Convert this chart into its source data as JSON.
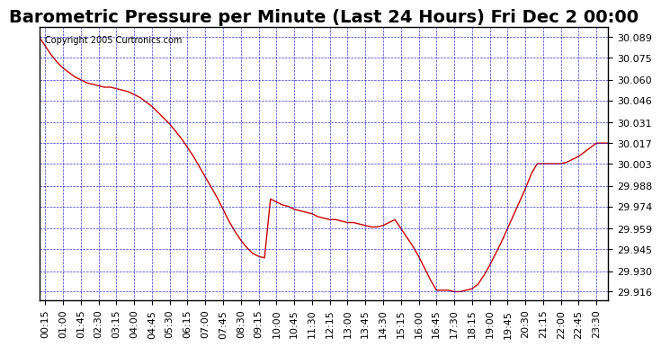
{
  "title": "Barometric Pressure per Minute (Last 24 Hours) Fri Dec 2 00:00",
  "copyright": "Copyright 2005 Curtronics.com",
  "line_color": "#cc0000",
  "background_color": "#ffffff",
  "grid_color": "#0000cc",
  "title_fontsize": 14,
  "ylabel_fontsize": 8,
  "xlabel_fontsize": 8,
  "ylim": [
    29.91,
    30.096
  ],
  "yticks": [
    29.916,
    29.93,
    29.945,
    29.959,
    29.974,
    29.988,
    30.003,
    30.017,
    30.031,
    30.046,
    30.06,
    30.075,
    30.089
  ],
  "ytick_labels": [
    "29.916",
    "29.930",
    "29.945",
    "29.959",
    "29.974",
    "29.988",
    "30.003",
    "30.017",
    "30.031",
    "30.046",
    "30.060",
    "30.075",
    "30.089"
  ],
  "xtick_labels": [
    "00:15",
    "01:00",
    "01:45",
    "02:30",
    "03:15",
    "04:00",
    "04:45",
    "05:30",
    "06:15",
    "07:00",
    "07:45",
    "08:30",
    "09:15",
    "10:00",
    "10:45",
    "11:30",
    "12:15",
    "13:00",
    "13:45",
    "14:30",
    "15:15",
    "16:00",
    "16:45",
    "17:30",
    "18:15",
    "19:00",
    "19:45",
    "20:30",
    "21:15",
    "22:00",
    "22:45",
    "23:30"
  ],
  "data_x": [
    0,
    15,
    30,
    45,
    60,
    75,
    90,
    105,
    120,
    135,
    150,
    165,
    180,
    195,
    210,
    225,
    240,
    255,
    270,
    285,
    300,
    315,
    330,
    345,
    360,
    375,
    390,
    405,
    420,
    435,
    450,
    465,
    480,
    495,
    510,
    525,
    540,
    555,
    570,
    585,
    600,
    615,
    630,
    645,
    660,
    675,
    690,
    705,
    720,
    735,
    750,
    765,
    780,
    795,
    810,
    825,
    840,
    855,
    870,
    885,
    900,
    915,
    930,
    945,
    960,
    975,
    990,
    1005,
    1020,
    1035,
    1050,
    1065,
    1080,
    1095,
    1110,
    1125,
    1140,
    1155,
    1170,
    1185,
    1200,
    1215,
    1230,
    1245,
    1260,
    1275,
    1290,
    1305,
    1320,
    1335,
    1350,
    1365,
    1380,
    1395,
    1410,
    1425,
    1440
  ],
  "data_y": [
    30.089,
    30.083,
    30.077,
    30.072,
    30.068,
    30.065,
    30.062,
    30.06,
    30.058,
    30.057,
    30.056,
    30.055,
    30.055,
    30.054,
    30.053,
    30.052,
    30.05,
    30.048,
    30.045,
    30.042,
    30.038,
    30.034,
    30.03,
    30.025,
    30.02,
    30.014,
    30.008,
    30.001,
    29.994,
    29.987,
    29.98,
    29.972,
    29.964,
    29.957,
    29.951,
    29.946,
    29.942,
    29.94,
    29.939,
    29.979,
    29.977,
    29.975,
    29.974,
    29.972,
    29.971,
    29.97,
    29.969,
    29.967,
    29.966,
    29.965,
    29.965,
    29.964,
    29.963,
    29.963,
    29.962,
    29.961,
    29.96,
    29.96,
    29.961,
    29.963,
    29.965,
    29.959,
    29.953,
    29.947,
    29.94,
    29.932,
    29.924,
    29.917,
    29.917,
    29.917,
    29.916,
    29.916,
    29.917,
    29.918,
    29.921,
    29.927,
    29.934,
    29.942,
    29.95,
    29.959,
    29.968,
    29.977,
    29.986,
    29.996,
    30.003,
    30.003,
    30.003,
    30.003,
    30.003,
    30.004,
    30.006,
    30.008,
    30.011,
    30.014,
    30.017,
    30.017,
    30.017
  ]
}
